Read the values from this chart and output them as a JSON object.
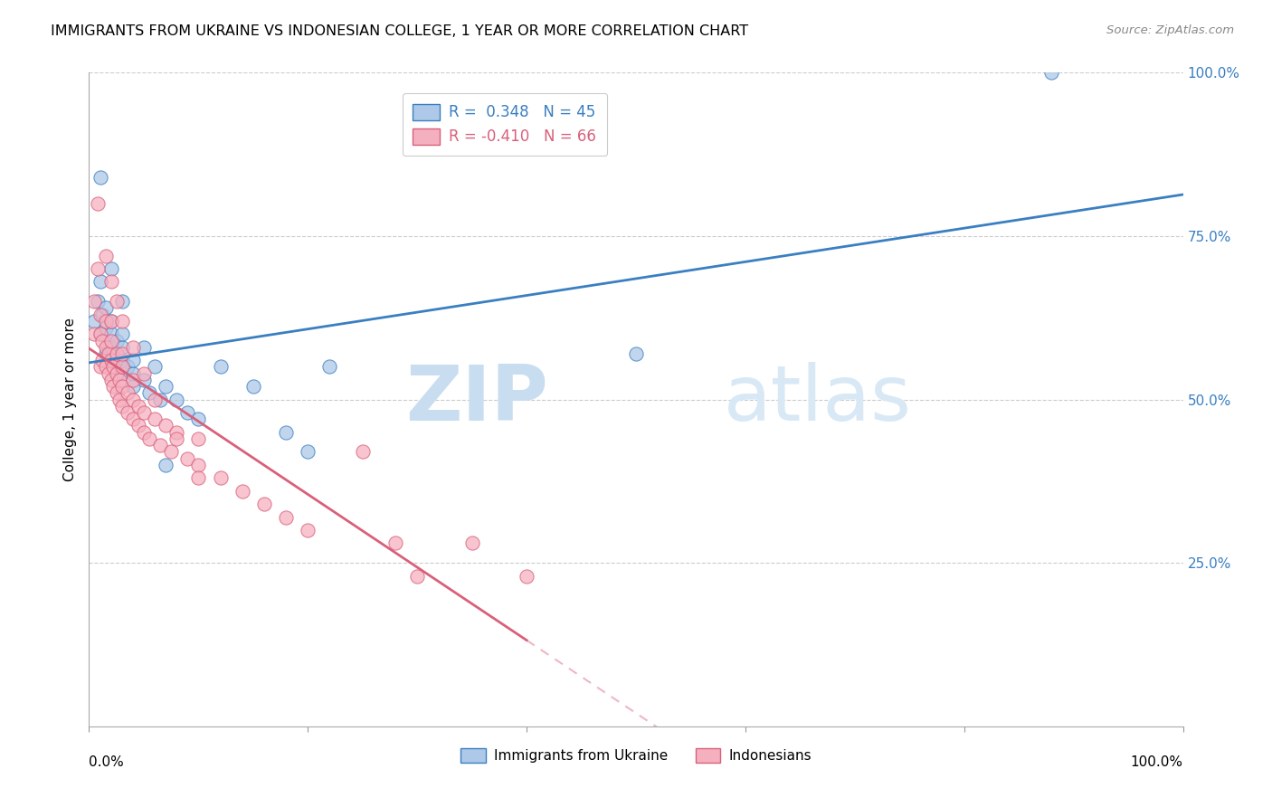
{
  "title": "IMMIGRANTS FROM UKRAINE VS INDONESIAN COLLEGE, 1 YEAR OR MORE CORRELATION CHART",
  "source": "Source: ZipAtlas.com",
  "ylabel": "College, 1 year or more",
  "legend_ukraine": "Immigrants from Ukraine",
  "legend_indonesian": "Indonesians",
  "r_ukraine": 0.348,
  "n_ukraine": 45,
  "r_indonesian": -0.41,
  "n_indonesian": 66,
  "ukraine_color": "#adc8e8",
  "indonesian_color": "#f5b0c0",
  "ukraine_line_color": "#3a7fc1",
  "indonesian_line_color": "#d9607a",
  "watermark_zip": "ZIP",
  "watermark_atlas": "atlas",
  "ukraine_scatter_x": [
    0.005,
    0.008,
    0.01,
    0.01,
    0.012,
    0.015,
    0.015,
    0.015,
    0.018,
    0.02,
    0.02,
    0.02,
    0.02,
    0.022,
    0.025,
    0.025,
    0.028,
    0.03,
    0.03,
    0.03,
    0.03,
    0.035,
    0.04,
    0.04,
    0.04,
    0.05,
    0.055,
    0.06,
    0.065,
    0.07,
    0.08,
    0.09,
    0.1,
    0.12,
    0.15,
    0.18,
    0.2,
    0.22,
    0.5,
    0.88,
    0.01,
    0.02,
    0.03,
    0.05,
    0.07
  ],
  "ukraine_scatter_y": [
    0.62,
    0.65,
    0.6,
    0.68,
    0.63,
    0.57,
    0.61,
    0.64,
    0.58,
    0.56,
    0.58,
    0.6,
    0.62,
    0.57,
    0.56,
    0.59,
    0.55,
    0.54,
    0.56,
    0.58,
    0.6,
    0.55,
    0.54,
    0.56,
    0.52,
    0.53,
    0.51,
    0.55,
    0.5,
    0.52,
    0.5,
    0.48,
    0.47,
    0.55,
    0.52,
    0.45,
    0.42,
    0.55,
    0.57,
    1.0,
    0.84,
    0.7,
    0.65,
    0.58,
    0.4
  ],
  "indonesian_scatter_x": [
    0.005,
    0.005,
    0.008,
    0.01,
    0.01,
    0.01,
    0.012,
    0.012,
    0.015,
    0.015,
    0.015,
    0.018,
    0.018,
    0.02,
    0.02,
    0.02,
    0.02,
    0.022,
    0.022,
    0.025,
    0.025,
    0.025,
    0.028,
    0.028,
    0.03,
    0.03,
    0.03,
    0.03,
    0.035,
    0.035,
    0.04,
    0.04,
    0.04,
    0.045,
    0.045,
    0.05,
    0.05,
    0.055,
    0.06,
    0.065,
    0.07,
    0.075,
    0.08,
    0.09,
    0.1,
    0.1,
    0.12,
    0.14,
    0.16,
    0.18,
    0.2,
    0.25,
    0.28,
    0.3,
    0.35,
    0.4,
    0.008,
    0.015,
    0.02,
    0.025,
    0.03,
    0.04,
    0.05,
    0.06,
    0.08,
    0.1
  ],
  "indonesian_scatter_y": [
    0.6,
    0.65,
    0.7,
    0.55,
    0.6,
    0.63,
    0.56,
    0.59,
    0.55,
    0.58,
    0.62,
    0.54,
    0.57,
    0.53,
    0.56,
    0.59,
    0.62,
    0.52,
    0.55,
    0.51,
    0.54,
    0.57,
    0.5,
    0.53,
    0.49,
    0.52,
    0.55,
    0.57,
    0.48,
    0.51,
    0.47,
    0.5,
    0.53,
    0.46,
    0.49,
    0.45,
    0.48,
    0.44,
    0.47,
    0.43,
    0.46,
    0.42,
    0.45,
    0.41,
    0.44,
    0.4,
    0.38,
    0.36,
    0.34,
    0.32,
    0.3,
    0.42,
    0.28,
    0.23,
    0.28,
    0.23,
    0.8,
    0.72,
    0.68,
    0.65,
    0.62,
    0.58,
    0.54,
    0.5,
    0.44,
    0.38
  ]
}
